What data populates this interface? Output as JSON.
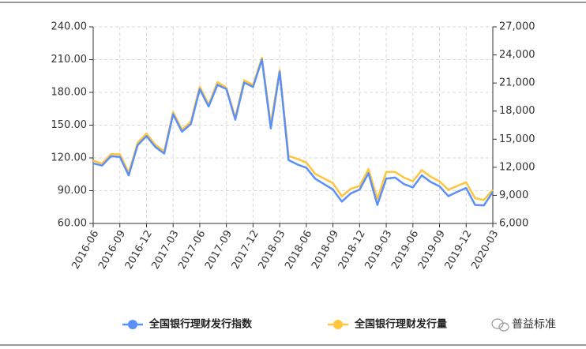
{
  "chart_data": {
    "type": "line",
    "categories": [
      "2016-06",
      null,
      null,
      "2016-09",
      null,
      null,
      "2016-12",
      null,
      null,
      "2017-03",
      null,
      null,
      "2017-06",
      null,
      null,
      "2017-09",
      null,
      null,
      "2017-12",
      null,
      null,
      "2018-03",
      null,
      null,
      "2018-06",
      null,
      null,
      "2018-09",
      null,
      null,
      "2018-12",
      null,
      null,
      "2019-03",
      null,
      null,
      "2019-06",
      null,
      null,
      "2019-09",
      null,
      null,
      "2019-12",
      null,
      null,
      "2020-03"
    ],
    "series": [
      {
        "name": "全国银行理财发行指数",
        "color": "#5B8FF9",
        "axis": "y",
        "values": [
          115,
          113,
          121.5,
          121,
          104,
          131.6,
          140,
          130,
          124,
          160,
          144,
          151,
          183,
          167,
          187,
          183,
          155,
          189,
          185,
          210,
          147,
          199,
          118,
          114,
          111,
          101,
          96,
          91,
          80,
          87.5,
          91,
          106,
          77,
          101,
          102,
          96,
          93,
          104,
          98,
          94,
          85,
          89,
          92.5,
          77,
          76.5,
          89
        ]
      },
      {
        "name": "全国银行理财发行量",
        "color": "#FFC53D",
        "axis": "y2",
        "values": [
          12700,
          12400,
          13400,
          13400,
          11400,
          14600,
          15600,
          14400,
          13700,
          17900,
          16000,
          16900,
          20600,
          18700,
          21100,
          20500,
          17300,
          21300,
          20800,
          23700,
          16600,
          22400,
          13200,
          12900,
          12500,
          11300,
          10800,
          10300,
          8900,
          9700,
          10000,
          11800,
          8600,
          11500,
          11500,
          10900,
          10500,
          11700,
          11000,
          10500,
          9600,
          10000,
          10400,
          8700,
          8500,
          9600
        ]
      }
    ],
    "ylim": [
      60,
      240
    ],
    "yticks": [
      {
        "value": 60,
        "label": "60.00"
      },
      {
        "value": 90,
        "label": "90.00"
      },
      {
        "value": 120,
        "label": "120.00"
      },
      {
        "value": 150,
        "label": "150.00"
      },
      {
        "value": 180,
        "label": "180.00"
      },
      {
        "value": 210,
        "label": "210.00"
      },
      {
        "value": 240,
        "label": "240.00"
      }
    ],
    "y2lim": [
      6000,
      27000
    ],
    "y2ticks": [
      {
        "value": 6000,
        "label": "6,000"
      },
      {
        "value": 9000,
        "label": "9,000"
      },
      {
        "value": 12000,
        "label": "12,000"
      },
      {
        "value": 15000,
        "label": "15,000"
      },
      {
        "value": 18000,
        "label": "18,000"
      },
      {
        "value": 21000,
        "label": "21,000"
      },
      {
        "value": 24000,
        "label": "24,000"
      },
      {
        "value": 27000,
        "label": "27,000"
      }
    ],
    "grid": true,
    "legend": "bottom",
    "watermark": "普益标准"
  }
}
